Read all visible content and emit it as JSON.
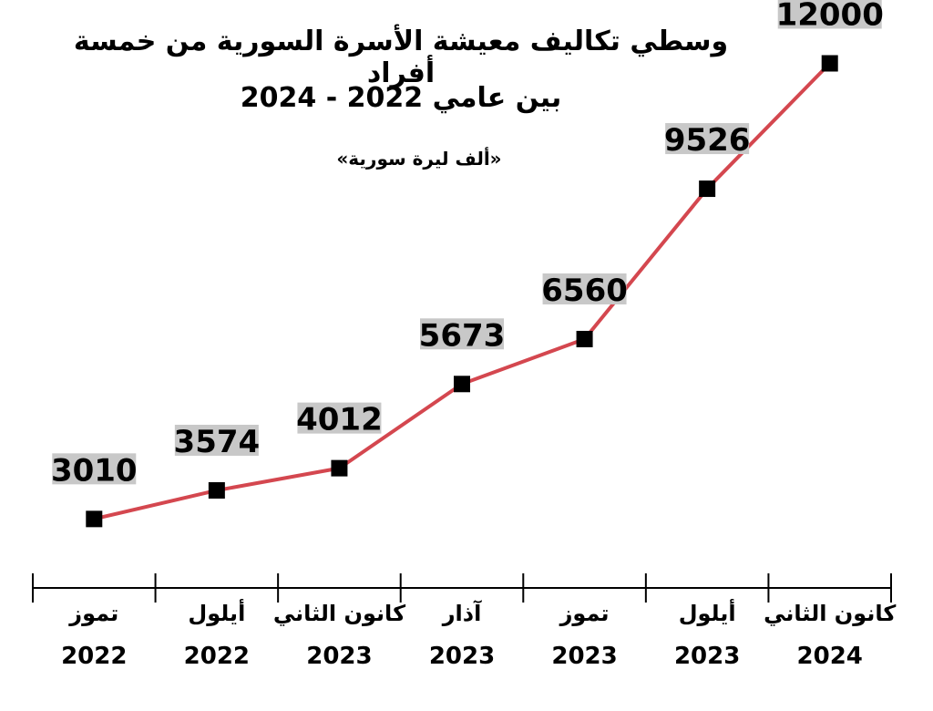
{
  "chart_data": {
    "type": "line",
    "title": "وسطي تكاليف معيشة الأسرة السورية من خمسة أفراد",
    "subtitle": "بين عامي 2022 - 2024",
    "unit": "«ألف ليرة سورية»",
    "categories": [
      {
        "month": "تموز",
        "year": "2022"
      },
      {
        "month": "أيلول",
        "year": "2022"
      },
      {
        "month": "كانون الثاني",
        "year": "2023"
      },
      {
        "month": "آذار",
        "year": "2023"
      },
      {
        "month": "تموز",
        "year": "2023"
      },
      {
        "month": "أيلول",
        "year": "2023"
      },
      {
        "month": "كانون الثاني",
        "year": "2024"
      }
    ],
    "values": [
      3010,
      3574,
      4012,
      5673,
      6560,
      9526,
      12000
    ],
    "line_color": "#d4474f",
    "marker_color": "#000000",
    "label_bg": "#c8c8c8",
    "grid": false
  }
}
